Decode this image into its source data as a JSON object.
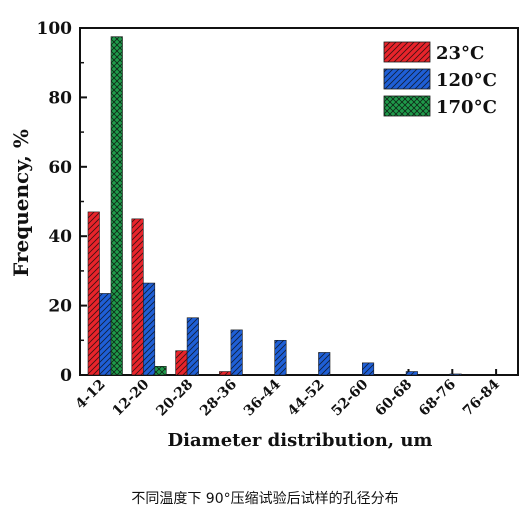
{
  "caption": "不同温度下 90°压缩试验后试样的孔径分布",
  "colors": {
    "series_23": "#e8242b",
    "series_120": "#1f5fd6",
    "series_170": "#1f9a4a",
    "axis": "#111111"
  },
  "chart_data": {
    "type": "bar",
    "title": "",
    "xlabel": "Diameter distribution, um",
    "ylabel": "Frequency, %",
    "ylim": [
      0,
      100
    ],
    "yticks": [
      0,
      20,
      40,
      60,
      80,
      100
    ],
    "grid": false,
    "legend_position": "top-right",
    "categories": [
      "4-12",
      "12-20",
      "20-28",
      "28-36",
      "36-44",
      "44-52",
      "52-60",
      "60-68",
      "68-76",
      "76-84"
    ],
    "series": [
      {
        "name": "23°C",
        "color": "#e8242b",
        "pattern": "diagonal-hatch",
        "values": [
          47,
          45,
          7,
          1,
          0,
          0,
          0,
          0,
          0,
          0
        ]
      },
      {
        "name": "120°C",
        "color": "#1f5fd6",
        "pattern": "diagonal-hatch",
        "values": [
          23.5,
          26.5,
          16.5,
          13,
          10,
          6.5,
          3.5,
          1,
          0.3,
          0
        ]
      },
      {
        "name": "170°C",
        "color": "#1f9a4a",
        "pattern": "crosshatch",
        "values": [
          97.5,
          2.5,
          0,
          0,
          0,
          0,
          0,
          0,
          0,
          0
        ]
      }
    ]
  }
}
